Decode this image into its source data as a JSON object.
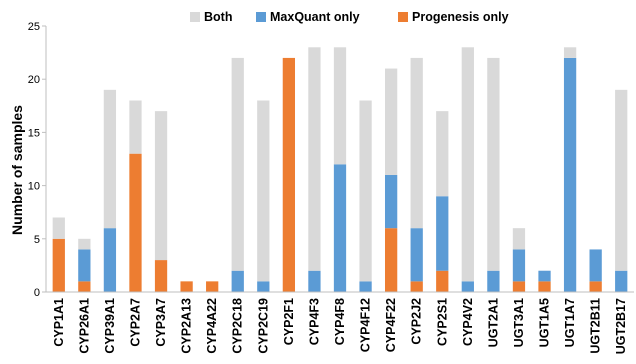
{
  "chart_data": {
    "type": "bar",
    "stacked": true,
    "title": "",
    "xlabel": "",
    "ylabel": "Number of samples",
    "ylim": [
      0,
      25
    ],
    "yticks": [
      0,
      5,
      10,
      15,
      20,
      25
    ],
    "grid": false,
    "legend_position": "top",
    "categories": [
      "CYP1A1",
      "CYP26A1",
      "CYP39A1",
      "CYP2A7",
      "CYP3A7",
      "CYP2A13",
      "CYP4A22",
      "CYP2C18",
      "CYP2C19",
      "CYP2F1",
      "CYP4F3",
      "CYP4F8",
      "CYP4F12",
      "CYP4F22",
      "CYP2J2",
      "CYP2S1",
      "CYP4V2",
      "UGT2A1",
      "UGT3A1",
      "UGT1A5",
      "UGT1A7",
      "UGT2B11",
      "UGT2B17"
    ],
    "series": [
      {
        "name": "Progenesis only",
        "color": "#ED7D31",
        "values": [
          5,
          1,
          0,
          13,
          3,
          1,
          1,
          0,
          0,
          22,
          0,
          0,
          0,
          6,
          1,
          2,
          0,
          0,
          1,
          1,
          0,
          1,
          0
        ]
      },
      {
        "name": "MaxQuant only",
        "color": "#5B9BD5",
        "values": [
          0,
          3,
          6,
          0,
          0,
          0,
          0,
          2,
          1,
          0,
          2,
          12,
          1,
          5,
          5,
          7,
          1,
          2,
          3,
          1,
          22,
          3,
          2
        ]
      },
      {
        "name": "Both",
        "color": "#D9D9D9",
        "values": [
          2,
          1,
          13,
          5,
          14,
          0,
          0,
          20,
          17,
          0,
          21,
          11,
          17,
          10,
          16,
          8,
          22,
          20,
          2,
          0,
          1,
          0,
          17
        ]
      }
    ],
    "legend_order": [
      "Both",
      "MaxQuant only",
      "Progenesis only"
    ]
  }
}
